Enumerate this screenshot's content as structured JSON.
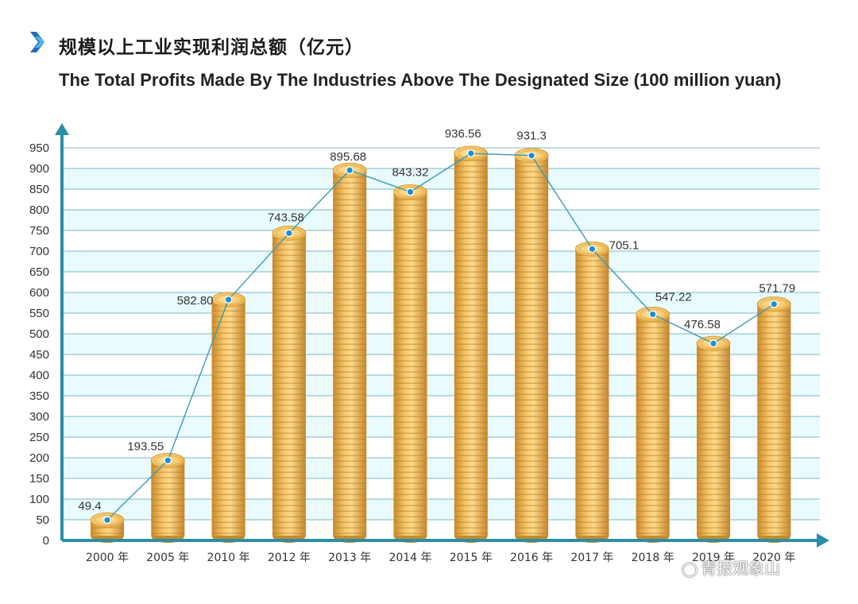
{
  "header": {
    "title_cn": "规模以上工业实现利润总额（亿元）",
    "title_en": "The Total Profits Made By The Industries Above The Designated Size (100 million yuan)"
  },
  "colors": {
    "accent": "#2a9db5",
    "line": "#3b9bb0",
    "dot": "#1b8fd1",
    "coin_light": "#fbd98a",
    "coin_dark": "#d4962d",
    "band": "#e9fbff",
    "grid": "#1f7f96"
  },
  "chart_data": {
    "type": "bar",
    "title": "规模以上工业实现利润总额（亿元）",
    "subtitle": "The Total Profits Made By The Industries Above The Designated Size (100 million yuan)",
    "categories": [
      "2000 年",
      "2005 年",
      "2010 年",
      "2012 年",
      "2013 年",
      "2014 年",
      "2015 年",
      "2016 年",
      "2017 年",
      "2018 年",
      "2019 年",
      "2020 年"
    ],
    "values": [
      49.4,
      193.55,
      582.8,
      743.58,
      895.68,
      843.32,
      936.56,
      931.3,
      705.1,
      547.22,
      476.58,
      571.79
    ],
    "value_labels": [
      "49.4",
      "193.55",
      "582.80",
      "743.58",
      "895.68",
      "843.32",
      "936.56",
      "931.3",
      "705.1",
      "547.22",
      "476.58",
      "571.79"
    ],
    "y_ticks": [
      0,
      50,
      100,
      150,
      200,
      250,
      300,
      350,
      400,
      450,
      500,
      550,
      600,
      650,
      700,
      750,
      800,
      850,
      900,
      950
    ],
    "ylim": [
      0,
      950
    ],
    "xlabel": "",
    "ylabel": "",
    "overlay": "line",
    "grid": true
  },
  "watermark": {
    "icon": "wechat-icon",
    "text": "青报观象山"
  }
}
